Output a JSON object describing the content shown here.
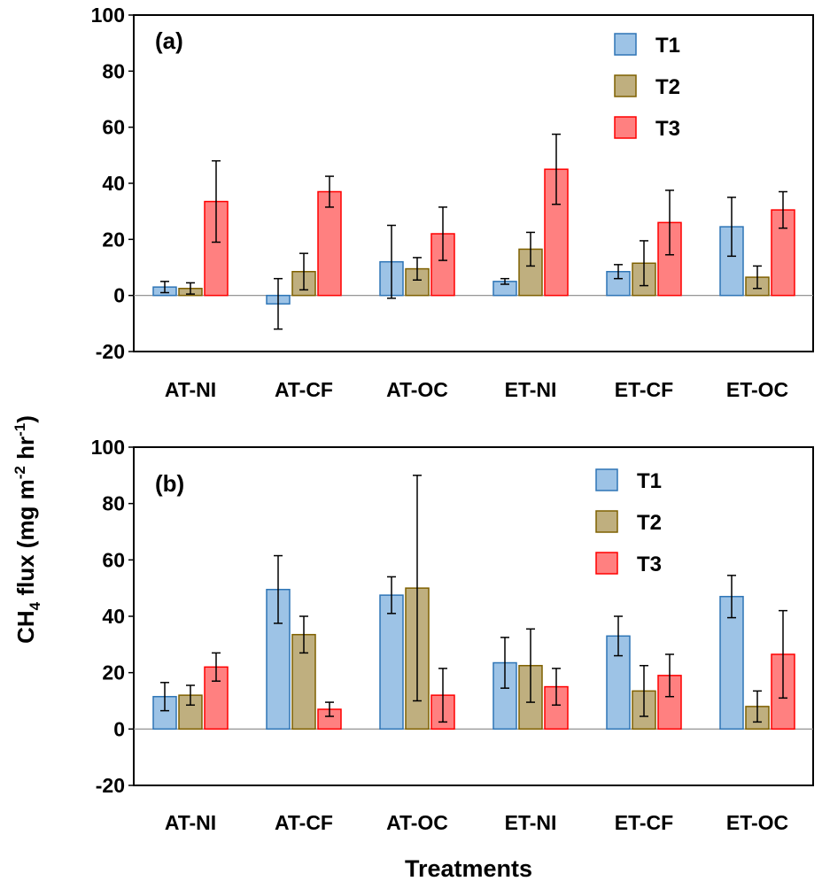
{
  "figure": {
    "ylabel_main": "CH",
    "ylabel_sub": "4",
    "ylabel_rest": " flux (mg m",
    "ylabel_sup1": "-2",
    "ylabel_mid": " hr",
    "ylabel_sup2": "-1",
    "ylabel_end": ")",
    "xlabel": "Treatments"
  },
  "colors": {
    "T1": "#9DC3E6",
    "T1_edge": "#2E75B6",
    "T2": "#BFAF7F",
    "T2_edge": "#7F6000",
    "T3": "#FF8080",
    "T3_edge": "#FF0000"
  },
  "chart_data": [
    {
      "type": "bar",
      "panel_label": "(a)",
      "categories": [
        "AT-NI",
        "AT-CF",
        "AT-OC",
        "ET-NI",
        "ET-CF",
        "ET-OC"
      ],
      "ylim": [
        -20,
        100
      ],
      "yticks": [
        100,
        80,
        60,
        40,
        20,
        0,
        -20
      ],
      "legend_position": "top-right",
      "grid": false,
      "series": [
        {
          "name": "T1",
          "values": [
            3,
            -3,
            12,
            5,
            8.5,
            24.5
          ],
          "errors": [
            2,
            9,
            13,
            1,
            2.5,
            10.5
          ]
        },
        {
          "name": "T2",
          "values": [
            2.5,
            8.5,
            9.5,
            16.5,
            11.5,
            6.5
          ],
          "errors": [
            2,
            6.5,
            4,
            6,
            8,
            4
          ]
        },
        {
          "name": "T3",
          "values": [
            33.5,
            37,
            22,
            45,
            26,
            30.5
          ],
          "errors": [
            14.5,
            5.5,
            9.5,
            12.5,
            11.5,
            6.5
          ]
        }
      ]
    },
    {
      "type": "bar",
      "panel_label": "(b)",
      "categories": [
        "AT-NI",
        "AT-CF",
        "AT-OC",
        "ET-NI",
        "ET-CF",
        "ET-OC"
      ],
      "ylim": [
        -20,
        100
      ],
      "yticks": [
        100,
        80,
        60,
        40,
        20,
        0,
        -20
      ],
      "legend_position": "top-right",
      "grid": false,
      "series": [
        {
          "name": "T1",
          "values": [
            11.5,
            49.5,
            47.5,
            23.5,
            33,
            47
          ],
          "errors": [
            5,
            12,
            6.5,
            9,
            7,
            7.5
          ]
        },
        {
          "name": "T2",
          "values": [
            12,
            33.5,
            50,
            22.5,
            13.5,
            8
          ],
          "errors": [
            3.5,
            6.5,
            40,
            13,
            9,
            5.5
          ]
        },
        {
          "name": "T3",
          "values": [
            22,
            7,
            12,
            15,
            19,
            26.5
          ],
          "errors": [
            5,
            2.5,
            9.5,
            6.5,
            7.5,
            15.5
          ]
        }
      ]
    }
  ]
}
